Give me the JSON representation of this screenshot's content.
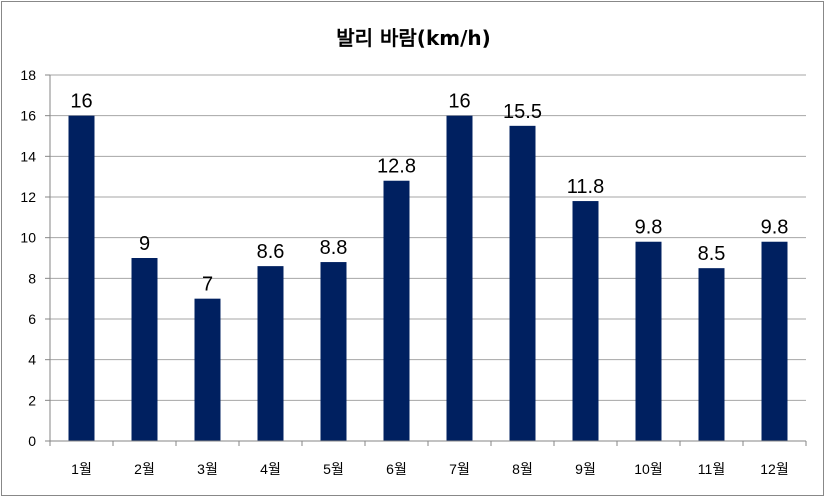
{
  "chart_data": {
    "type": "bar",
    "title": "발리 바람(km/h)",
    "xlabel": "",
    "ylabel": "",
    "categories": [
      "1월",
      "2월",
      "3월",
      "4월",
      "5월",
      "6월",
      "7월",
      "8월",
      "9월",
      "10월",
      "11월",
      "12월"
    ],
    "values": [
      16,
      9,
      7,
      8.6,
      8.8,
      12.8,
      16,
      15.5,
      11.8,
      9.8,
      8.5,
      9.8
    ],
    "data_labels": [
      "16",
      "9",
      "7",
      "8.6",
      "8.8",
      "12.8",
      "16",
      "15.5",
      "11.8",
      "9.8",
      "8.5",
      "9.8"
    ],
    "ylim": [
      0,
      18
    ],
    "yticks": [
      0,
      2,
      4,
      6,
      8,
      10,
      12,
      14,
      16,
      18
    ],
    "grid": true,
    "legend": "none",
    "bar_color": "#002060"
  }
}
